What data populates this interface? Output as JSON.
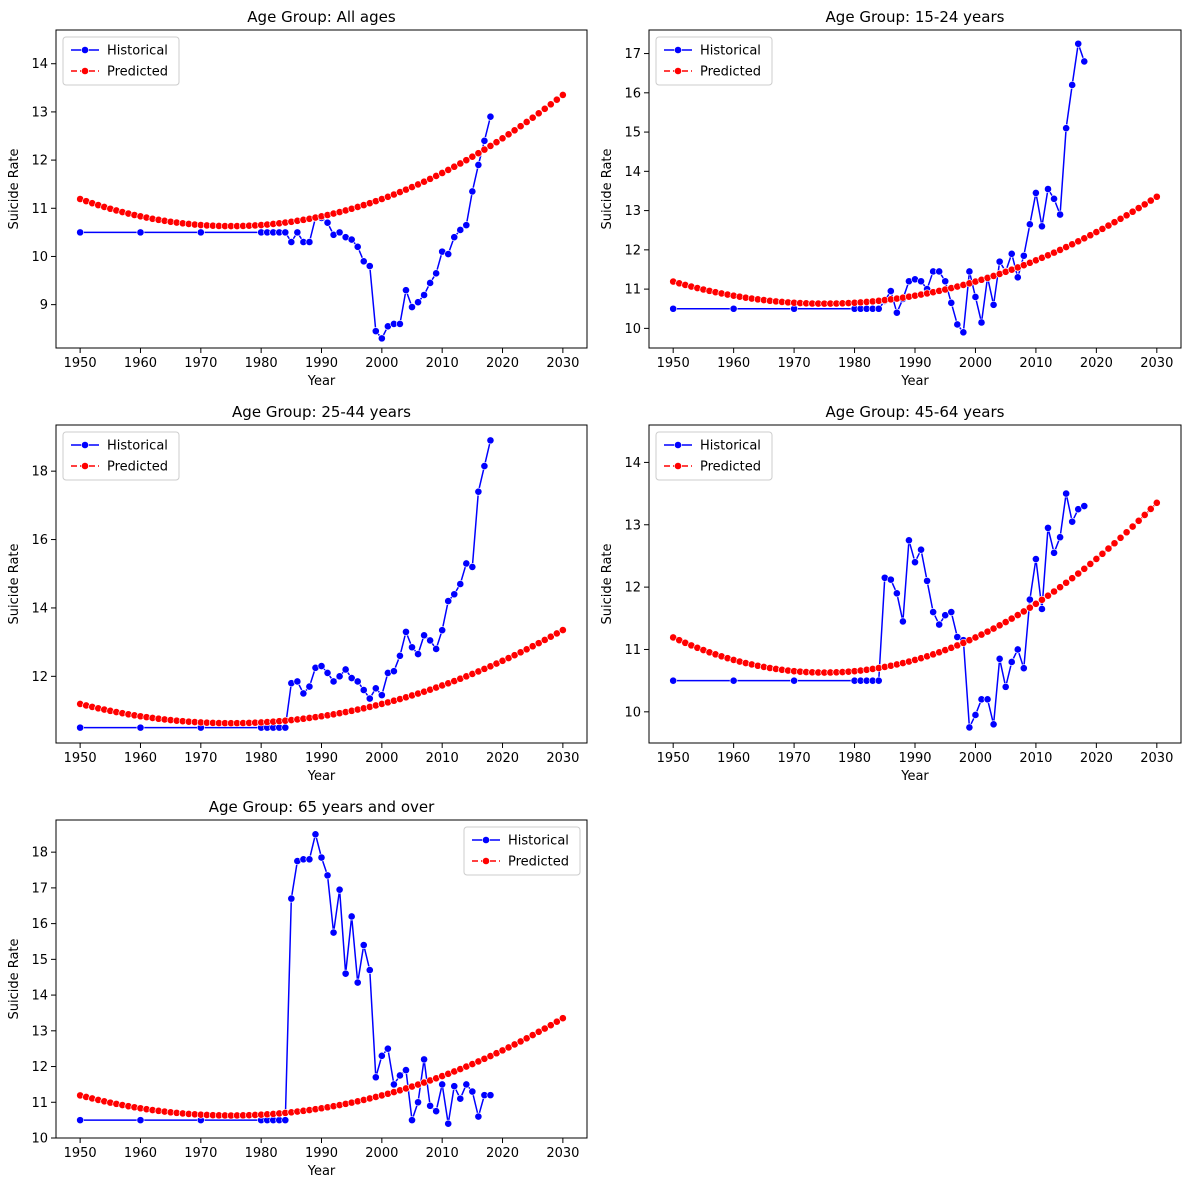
{
  "colors": {
    "historical": "#0000ff",
    "predicted": "#ff0000",
    "axes": "#000000",
    "legend_border": "#cccccc"
  },
  "chart_data": [
    {
      "type": "line",
      "title": "Age Group: All ages",
      "xlabel": "Year",
      "ylabel": "Suicide Rate",
      "xlim": [
        1946,
        2034
      ],
      "ylim": [
        8.1,
        14.7
      ],
      "xticks": [
        1950,
        1960,
        1970,
        1980,
        1990,
        2000,
        2010,
        2020,
        2030
      ],
      "yticks": [
        9,
        10,
        11,
        12,
        13,
        14
      ],
      "legend_position": "upper-left",
      "legend": [
        "Historical",
        "Predicted"
      ],
      "series": [
        {
          "name": "Historical",
          "x": [
            1950,
            1960,
            1970,
            1980,
            1981,
            1982,
            1983,
            1984,
            1985,
            1986,
            1987,
            1988,
            1989,
            1990,
            1991,
            1992,
            1993,
            1994,
            1995,
            1996,
            1997,
            1998,
            1999,
            2000,
            2001,
            2002,
            2003,
            2004,
            2005,
            2006,
            2007,
            2008,
            2009,
            2010,
            2011,
            2012,
            2013,
            2014,
            2015,
            2016,
            2017,
            2018
          ],
          "y": [
            10.5,
            10.5,
            10.5,
            10.5,
            10.5,
            10.5,
            10.5,
            10.5,
            10.3,
            10.5,
            10.3,
            10.3,
            10.8,
            10.8,
            10.7,
            10.45,
            10.5,
            10.4,
            10.35,
            10.2,
            9.9,
            9.8,
            8.45,
            8.3,
            8.55,
            8.6,
            8.6,
            9.3,
            8.95,
            9.05,
            9.2,
            9.45,
            9.65,
            10.1,
            10.05,
            10.4,
            10.55,
            10.65,
            11.35,
            11.9,
            12.4,
            12.9
          ]
        },
        {
          "name": "Predicted",
          "x_start": 1950,
          "x_end": 2030,
          "curve": [
            0.0009,
            1975,
            10.63
          ]
        }
      ]
    },
    {
      "type": "line",
      "title": "Age Group: 15-24 years",
      "xlabel": "Year",
      "ylabel": "Suicide Rate",
      "xlim": [
        1946,
        2034
      ],
      "ylim": [
        9.5,
        17.6
      ],
      "xticks": [
        1950,
        1960,
        1970,
        1980,
        1990,
        2000,
        2010,
        2020,
        2030
      ],
      "yticks": [
        10,
        11,
        12,
        13,
        14,
        15,
        16,
        17
      ],
      "legend_position": "upper-left",
      "legend": [
        "Historical",
        "Predicted"
      ],
      "series": [
        {
          "name": "Historical",
          "x": [
            1950,
            1960,
            1970,
            1980,
            1981,
            1982,
            1983,
            1984,
            1985,
            1986,
            1987,
            1988,
            1989,
            1990,
            1991,
            1992,
            1993,
            1994,
            1995,
            1996,
            1997,
            1998,
            1999,
            2000,
            2001,
            2002,
            2003,
            2004,
            2005,
            2006,
            2007,
            2008,
            2009,
            2010,
            2011,
            2012,
            2013,
            2014,
            2015,
            2016,
            2017,
            2018
          ],
          "y": [
            10.5,
            10.5,
            10.5,
            10.5,
            10.5,
            10.5,
            10.5,
            10.5,
            10.7,
            10.95,
            10.4,
            10.75,
            11.2,
            11.25,
            11.2,
            11.0,
            11.45,
            11.45,
            11.2,
            10.65,
            10.1,
            9.9,
            11.45,
            10.8,
            10.15,
            11.3,
            10.6,
            11.7,
            11.45,
            11.9,
            11.3,
            11.85,
            12.65,
            13.45,
            12.6,
            13.55,
            13.3,
            12.9,
            15.1,
            16.2,
            17.25,
            16.8
          ]
        },
        {
          "name": "Predicted",
          "x_start": 1950,
          "x_end": 2030,
          "curve": [
            0.0009,
            1975,
            10.63
          ]
        }
      ]
    },
    {
      "type": "line",
      "title": "Age Group: 25-44 years",
      "xlabel": "Year",
      "ylabel": "Suicide Rate",
      "xlim": [
        1946,
        2034
      ],
      "ylim": [
        10.05,
        19.35
      ],
      "xticks": [
        1950,
        1960,
        1970,
        1980,
        1990,
        2000,
        2010,
        2020,
        2030
      ],
      "yticks": [
        12,
        14,
        16,
        18
      ],
      "legend_position": "upper-left",
      "legend": [
        "Historical",
        "Predicted"
      ],
      "series": [
        {
          "name": "Historical",
          "x": [
            1950,
            1960,
            1970,
            1980,
            1981,
            1982,
            1983,
            1984,
            1985,
            1986,
            1987,
            1988,
            1989,
            1990,
            1991,
            1992,
            1993,
            1994,
            1995,
            1996,
            1997,
            1998,
            1999,
            2000,
            2001,
            2002,
            2003,
            2004,
            2005,
            2006,
            2007,
            2008,
            2009,
            2010,
            2011,
            2012,
            2013,
            2014,
            2015,
            2016,
            2017,
            2018
          ],
          "y": [
            10.5,
            10.5,
            10.5,
            10.5,
            10.5,
            10.5,
            10.5,
            10.5,
            11.8,
            11.85,
            11.5,
            11.7,
            12.25,
            12.3,
            12.1,
            11.85,
            12.0,
            12.2,
            11.95,
            11.85,
            11.6,
            11.35,
            11.65,
            11.45,
            12.1,
            12.15,
            12.6,
            13.3,
            12.85,
            12.65,
            13.2,
            13.05,
            12.8,
            13.35,
            14.2,
            14.4,
            14.7,
            15.3,
            15.2,
            17.4,
            18.15,
            18.9
          ]
        },
        {
          "name": "Predicted",
          "x_start": 1950,
          "x_end": 2030,
          "curve": [
            0.0009,
            1975,
            10.63
          ]
        }
      ]
    },
    {
      "type": "line",
      "title": "Age Group: 45-64 years",
      "xlabel": "Year",
      "ylabel": "Suicide Rate",
      "xlim": [
        1946,
        2034
      ],
      "ylim": [
        9.5,
        14.6
      ],
      "xticks": [
        1950,
        1960,
        1970,
        1980,
        1990,
        2000,
        2010,
        2020,
        2030
      ],
      "yticks": [
        10,
        11,
        12,
        13,
        14
      ],
      "legend_position": "upper-left",
      "legend": [
        "Historical",
        "Predicted"
      ],
      "series": [
        {
          "name": "Historical",
          "x": [
            1950,
            1960,
            1970,
            1980,
            1981,
            1982,
            1983,
            1984,
            1985,
            1986,
            1987,
            1988,
            1989,
            1990,
            1991,
            1992,
            1993,
            1994,
            1995,
            1996,
            1997,
            1998,
            1999,
            2000,
            2001,
            2002,
            2003,
            2004,
            2005,
            2006,
            2007,
            2008,
            2009,
            2010,
            2011,
            2012,
            2013,
            2014,
            2015,
            2016,
            2017,
            2018
          ],
          "y": [
            10.5,
            10.5,
            10.5,
            10.5,
            10.5,
            10.5,
            10.5,
            10.5,
            12.15,
            12.12,
            11.9,
            11.45,
            12.75,
            12.4,
            12.6,
            12.1,
            11.6,
            11.4,
            11.55,
            11.6,
            11.2,
            11.15,
            9.75,
            9.95,
            10.2,
            10.2,
            9.8,
            10.85,
            10.4,
            10.8,
            11.0,
            10.7,
            11.8,
            12.45,
            11.65,
            12.95,
            12.55,
            12.8,
            13.5,
            13.05,
            13.25,
            13.3
          ]
        },
        {
          "name": "Predicted",
          "x_start": 1950,
          "x_end": 2030,
          "curve": [
            0.0009,
            1975,
            10.63
          ]
        }
      ]
    },
    {
      "type": "line",
      "title": "Age Group: 65 years and over",
      "xlabel": "Year",
      "ylabel": "Suicide Rate",
      "xlim": [
        1946,
        2034
      ],
      "ylim": [
        10,
        18.9
      ],
      "xticks": [
        1950,
        1960,
        1970,
        1980,
        1990,
        2000,
        2010,
        2020,
        2030
      ],
      "yticks": [
        10,
        11,
        12,
        13,
        14,
        15,
        16,
        17,
        18
      ],
      "legend_position": "upper-right",
      "legend": [
        "Historical",
        "Predicted"
      ],
      "series": [
        {
          "name": "Historical",
          "x": [
            1950,
            1960,
            1970,
            1980,
            1981,
            1982,
            1983,
            1984,
            1985,
            1986,
            1987,
            1988,
            1989,
            1990,
            1991,
            1992,
            1993,
            1994,
            1995,
            1996,
            1997,
            1998,
            1999,
            2000,
            2001,
            2002,
            2003,
            2004,
            2005,
            2006,
            2007,
            2008,
            2009,
            2010,
            2011,
            2012,
            2013,
            2014,
            2015,
            2016,
            2017,
            2018
          ],
          "y": [
            10.5,
            10.5,
            10.5,
            10.5,
            10.5,
            10.5,
            10.5,
            10.5,
            16.7,
            17.75,
            17.8,
            17.8,
            18.5,
            17.85,
            17.35,
            15.75,
            16.95,
            14.6,
            16.2,
            14.35,
            15.4,
            14.7,
            11.7,
            12.3,
            12.5,
            11.5,
            11.75,
            11.9,
            10.5,
            11.0,
            12.2,
            10.9,
            10.75,
            11.5,
            10.4,
            11.45,
            11.1,
            11.5,
            11.3,
            10.6,
            11.2,
            11.2
          ]
        },
        {
          "name": "Predicted",
          "x_start": 1950,
          "x_end": 2030,
          "curve": [
            0.0009,
            1975,
            10.63
          ]
        }
      ]
    }
  ]
}
